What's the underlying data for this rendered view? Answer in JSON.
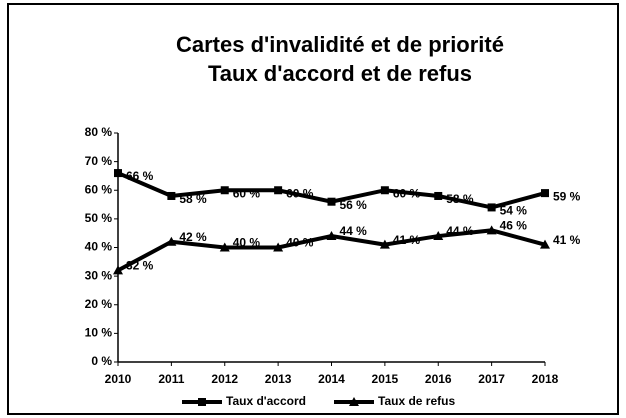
{
  "chart_data": {
    "type": "line",
    "title": "Cartes d'invalidité et de priorité",
    "subtitle": "Taux d'accord et de refus",
    "categories": [
      "2010",
      "2011",
      "2012",
      "2013",
      "2014",
      "2015",
      "2016",
      "2017",
      "2018"
    ],
    "series": [
      {
        "name": "Taux d'accord",
        "color": "#000000",
        "marker": "square",
        "values": [
          66,
          58,
          60,
          60,
          56,
          60,
          58,
          54,
          59
        ],
        "value_labels": [
          "66 %",
          "58 %",
          "60 %",
          "60 %",
          "56 %",
          "60 %",
          "58 %",
          "54 %",
          "59 %"
        ]
      },
      {
        "name": "Taux de refus",
        "color": "#000000",
        "marker": "triangle",
        "values": [
          32,
          42,
          40,
          40,
          44,
          41,
          44,
          46,
          41
        ],
        "value_labels": [
          "32 %",
          "42 %",
          "40 %",
          "40 %",
          "44 %",
          "41 %",
          "44 %",
          "46 %",
          "41 %"
        ]
      }
    ],
    "ylim": [
      0,
      80
    ],
    "yticks": [
      {
        "value": 0,
        "label": "0 %"
      },
      {
        "value": 10,
        "label": "10 %"
      },
      {
        "value": 20,
        "label": "20 %"
      },
      {
        "value": 30,
        "label": "30 %"
      },
      {
        "value": 40,
        "label": "40 %"
      },
      {
        "value": 50,
        "label": "50 %"
      },
      {
        "value": 60,
        "label": "60 %"
      },
      {
        "value": 70,
        "label": "70 %"
      },
      {
        "value": 80,
        "label": "80 %"
      }
    ],
    "legend": "bottom"
  }
}
